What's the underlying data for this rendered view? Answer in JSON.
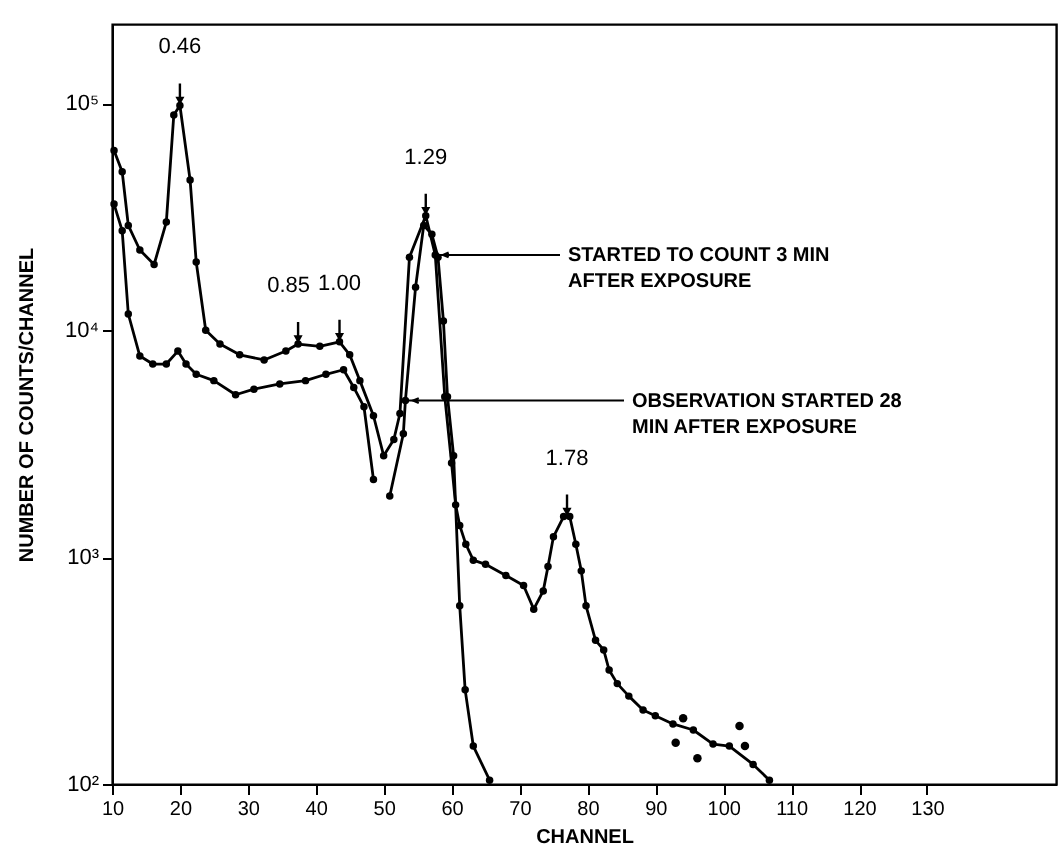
{
  "chart_data": {
    "type": "line",
    "xlabel": "CHANNEL",
    "ylabel": "NUMBER OF COUNTS/CHANNEL",
    "xlim": [
      10,
      149
    ],
    "xticks": [
      10,
      20,
      30,
      40,
      50,
      60,
      70,
      80,
      90,
      100,
      110,
      120,
      130
    ],
    "ylim": [
      100,
      224000
    ],
    "log": "y",
    "yticks": [
      {
        "value": 100,
        "label": "10²"
      },
      {
        "value": 1000,
        "label": "10³"
      },
      {
        "value": 10000,
        "label": "10⁴"
      },
      {
        "value": 100000,
        "label": "10⁵"
      }
    ],
    "marker": "circle",
    "line_style": "solid",
    "series": [
      {
        "name": "STARTED TO COUNT 3 MIN AFTER EXPOSURE",
        "color": "#000000",
        "x": [
          10.3,
          11.5,
          12.4,
          14.1,
          16.2,
          18,
          19.1,
          20,
          21.5,
          22.4,
          23.8,
          25.9,
          28.8,
          32.4,
          35.6,
          37.4,
          40.6,
          43.5,
          45,
          46.5,
          48.5,
          50,
          51.5,
          52.4,
          53.8,
          56.2,
          57.6,
          59,
          60,
          60.6,
          61.2,
          62.1,
          63.2,
          65,
          68,
          70.6,
          72.1,
          73.5,
          74.2,
          75,
          76.5,
          77.4,
          78.3,
          79.1,
          79.8,
          81.2,
          82.4,
          83.2,
          84.4,
          86.1,
          88.2,
          90,
          92.6,
          95.6,
          98.5,
          100.9,
          104.4,
          106.8
        ],
        "values": [
          62000,
          50000,
          29000,
          22600,
          19500,
          30000,
          89000,
          98000,
          46000,
          20000,
          10000,
          8700,
          7800,
          7400,
          8100,
          8700,
          8500,
          8900,
          7800,
          6000,
          4200,
          2800,
          3300,
          4300,
          21000,
          32000,
          21500,
          5100,
          2600,
          1700,
          1380,
          1140,
          970,
          930,
          830,
          750,
          590,
          710,
          910,
          1230,
          1510,
          1510,
          1140,
          870,
          610,
          430,
          390,
          318,
          277,
          244,
          212,
          200,
          184,
          173,
          150,
          147,
          122,
          104
        ]
      },
      {
        "color": "#000000",
        "x": [
          10.3,
          11.5,
          12.4,
          14.1,
          16,
          18,
          19.7,
          20.9,
          22.4,
          25,
          28.2,
          30.9,
          34.7,
          38.5,
          41.5,
          44.1,
          45.6,
          47.1,
          48.5
        ],
        "values": [
          36000,
          27500,
          11800,
          7700,
          7100,
          7100,
          8100,
          7100,
          6400,
          6000,
          5200,
          5500,
          5800,
          6000,
          6400,
          6700,
          5600,
          4600,
          2200
        ]
      },
      {
        "name": "OBSERVATION STARTED 28 MIN AFTER EXPOSURE",
        "color": "#000000",
        "x": [
          50.9,
          52.9,
          53.2,
          54.7,
          55.9,
          57.1,
          58,
          58.8,
          59.4,
          60.3,
          61.2,
          62,
          63.2,
          65.6
        ],
        "values": [
          1860,
          3500,
          4900,
          15500,
          29000,
          26500,
          21000,
          11000,
          5100,
          2800,
          610,
          260,
          147,
          104
        ]
      },
      {
        "type": "scatter",
        "color": "#000000",
        "x": [
          93,
          94.1,
          96.2,
          102.4,
          103.2
        ],
        "values": [
          152,
          195,
          130,
          180,
          147
        ]
      }
    ],
    "annotations": [
      {
        "text": "0.46",
        "x": 20,
        "y": 98000
      },
      {
        "text": "0.85",
        "x": 37.4,
        "y": 8700
      },
      {
        "text": "1.00",
        "x": 43.5,
        "y": 8900
      },
      {
        "text": "1.29",
        "x": 56.2,
        "y": 32000
      },
      {
        "text": "1.78",
        "x": 77,
        "y": 1510
      }
    ]
  }
}
